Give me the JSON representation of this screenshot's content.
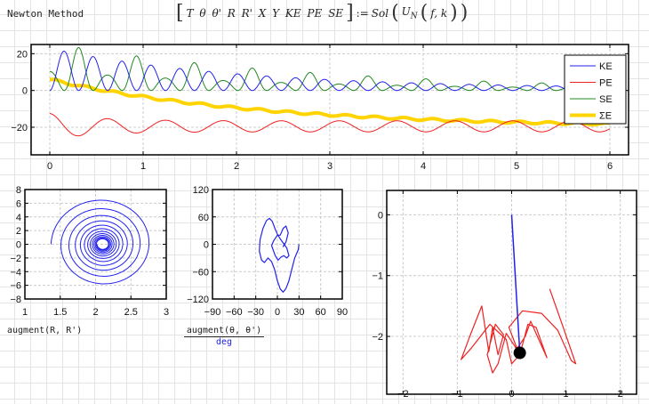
{
  "worksheet": {
    "title": "Newton Method",
    "equation": {
      "lhs": "T θ θ' R R' X Y KE PE SE",
      "assign": ":=",
      "rhs_func": "Sol",
      "rhs_inner": "U",
      "rhs_sub": "N",
      "rhs_args": "f, k"
    }
  },
  "chart_data": [
    {
      "type": "line",
      "xlim": [
        -0.2,
        6.2
      ],
      "ylim": [
        -35,
        25
      ],
      "grid": true,
      "legend": "top-right",
      "xticks": [
        "0",
        "1",
        "2",
        "3",
        "4",
        "5",
        "6"
      ],
      "yticks": [
        "20",
        "0",
        "−20"
      ],
      "series": [
        {
          "name": "KE",
          "color": "#2222ee"
        },
        {
          "name": "PE",
          "color": "#ee2222"
        },
        {
          "name": "SE",
          "color": "#228822"
        },
        {
          "name": "ΣE",
          "color": "#ffd400"
        }
      ]
    },
    {
      "type": "line",
      "xlim": [
        1,
        3
      ],
      "ylim": [
        -8,
        8
      ],
      "grid": true,
      "xticks": [
        "1",
        "1.5",
        "2",
        "2.5",
        "3"
      ],
      "yticks": [
        "8",
        "6",
        "4",
        "2",
        "0",
        "−2",
        "−4",
        "−6",
        "−8"
      ],
      "xlabel": "augment(R, R')",
      "color": "#2222ee"
    },
    {
      "type": "line",
      "xlim": [
        -90,
        90
      ],
      "ylim": [
        -120,
        120
      ],
      "grid": true,
      "xticks": [
        "−90",
        "−60",
        "−30",
        "0",
        "30",
        "60",
        "90"
      ],
      "yticks": [
        "120",
        "60",
        "0",
        "−60",
        "−120"
      ],
      "xlabel": "augment(θ, θ')",
      "xlabel_den": "deg",
      "color": "#2222ee"
    },
    {
      "type": "scatter",
      "xlim": [
        -2.3,
        2.3
      ],
      "ylim": [
        -2.95,
        0.4
      ],
      "grid": true,
      "xticks": [
        "−2",
        "−1",
        "0",
        "1",
        "2"
      ],
      "yticks": [
        "0",
        "−1",
        "−2"
      ],
      "rod_color": "#2222ee",
      "trace_color": "#ee2222",
      "bob_color": "#000000",
      "bob": [
        0.15,
        -2.27
      ]
    }
  ]
}
